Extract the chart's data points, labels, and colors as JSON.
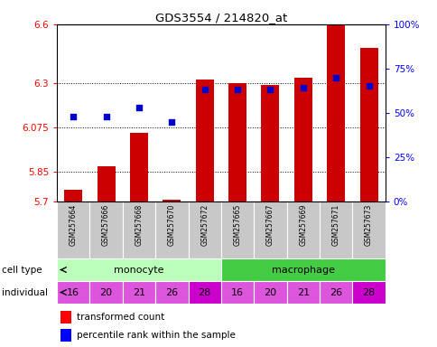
{
  "title": "GDS3554 / 214820_at",
  "samples": [
    "GSM257664",
    "GSM257666",
    "GSM257668",
    "GSM257670",
    "GSM257672",
    "GSM257665",
    "GSM257667",
    "GSM257669",
    "GSM257671",
    "GSM257673"
  ],
  "bar_values": [
    5.76,
    5.88,
    6.05,
    5.71,
    6.32,
    6.3,
    6.29,
    6.33,
    6.6,
    6.48
  ],
  "dot_values": [
    48,
    48,
    53,
    45,
    63,
    63,
    63,
    64,
    70,
    65
  ],
  "ylim": [
    5.7,
    6.6
  ],
  "yticks": [
    5.7,
    5.85,
    6.075,
    6.3,
    6.6
  ],
  "ytick_labels": [
    "5.7",
    "5.85",
    "6.075",
    "6.3",
    "6.6"
  ],
  "right_ylim": [
    0,
    100
  ],
  "right_yticks": [
    0,
    25,
    50,
    75,
    100
  ],
  "right_yticklabels": [
    "0%",
    "25%",
    "50%",
    "75%",
    "100%"
  ],
  "bar_color": "#cc0000",
  "dot_color": "#0000cc",
  "cell_type_colors": [
    "#bbffbb",
    "#44cc44"
  ],
  "monocyte_color": "#bbffbb",
  "macrophage_color": "#44cc44",
  "individual_color": "#dd55dd",
  "individual_28_color": "#cc00cc",
  "gray_cell_color": "#c8c8c8",
  "bar_width": 0.55,
  "ybase": 5.7,
  "n_monocyte": 5,
  "n_macrophage": 5,
  "individuals": [
    16,
    20,
    21,
    26,
    28,
    16,
    20,
    21,
    26,
    28
  ]
}
